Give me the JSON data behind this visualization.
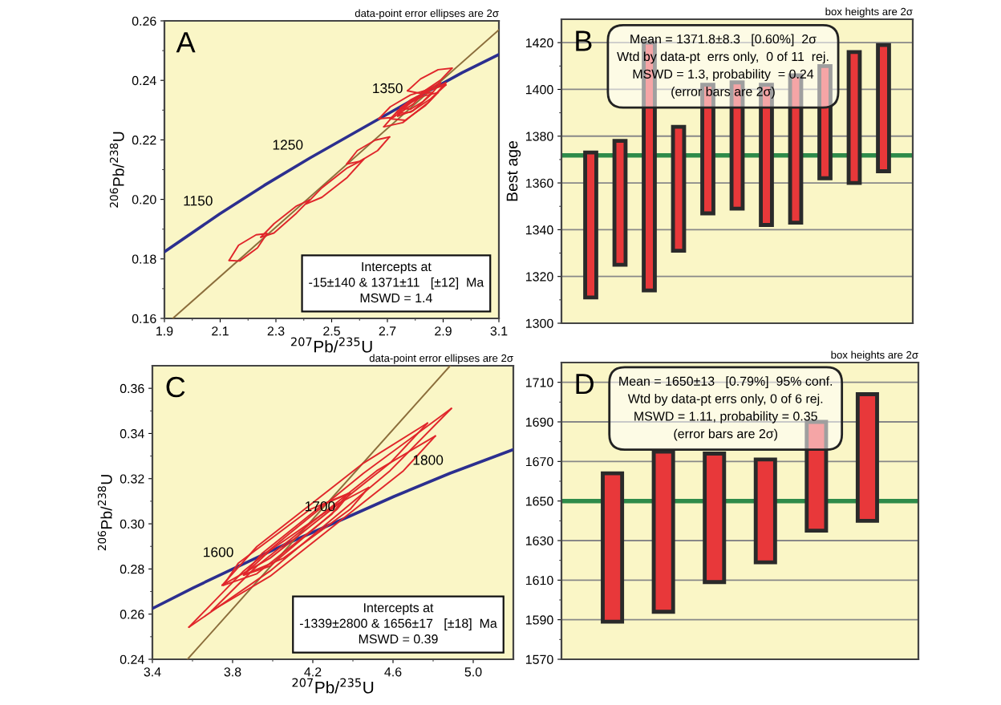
{
  "chart_data": [
    {
      "type": "line",
      "xlabel": "$^{207}$Pb/$^{235}$U",
      "ylabel": "$^{206}$Pb/$^{238}$U",
      "xlim": [
        1.9,
        3.1
      ],
      "ylim": [
        0.16,
        0.26
      ],
      "xticks": [
        1.9,
        {
          "value": 2.0,
          "label": null
        },
        2.1,
        {
          "value": 2.2,
          "label": null
        },
        2.3,
        {
          "value": 2.4,
          "label": null
        },
        2.5,
        {
          "value": 2.6,
          "label": null
        },
        2.7,
        {
          "value": 2.8,
          "label": null
        },
        2.9,
        {
          "value": 3.0,
          "label": null
        },
        3.1
      ],
      "yticks": [
        0.16,
        {
          "value": 0.17,
          "label": null
        },
        0.18,
        {
          "value": 0.19,
          "label": null
        },
        {
          "value": 0.2,
          "label": "0.20"
        },
        {
          "value": 0.21,
          "label": null
        },
        0.22,
        {
          "value": 0.23,
          "label": null
        },
        0.24,
        {
          "value": 0.25,
          "label": null
        },
        0.26
      ],
      "series": [
        {
          "color": "#2c2f8f",
          "x": [
            1.9,
            2.098,
            2.258,
            2.422,
            2.597,
            2.78,
            2.968,
            3.1
          ],
          "values": [
            0.1824,
            0.1951,
            0.2047,
            0.2139,
            0.2232,
            0.2329,
            0.2426,
            0.2487
          ]
        },
        {
          "color": "#8c6e3c",
          "x": [
            1.93,
            3.1
          ],
          "values": [
            0.16,
            0.257
          ]
        },
        {
          "color": "#e0262b",
          "x": [
            2.132,
            2.166,
            2.229,
            2.268
          ],
          "values": [
            0.1795,
            0.1846,
            0.1881,
            0.1885
          ]
        },
        {
          "color": "#e0262b",
          "x": [
            2.132,
            2.17,
            2.234,
            2.268
          ],
          "values": [
            0.1795,
            0.1793,
            0.1837,
            0.1885
          ]
        },
        {
          "color": "#e0262b",
          "x": [
            2.246,
            2.293,
            2.374,
            2.42
          ],
          "values": [
            0.1873,
            0.1918,
            0.1978,
            0.1998
          ]
        },
        {
          "color": "#e0262b",
          "x": [
            2.246,
            2.293,
            2.374,
            2.42
          ],
          "values": [
            0.1873,
            0.1887,
            0.1954,
            0.1998
          ]
        },
        {
          "color": "#e0262b",
          "x": [
            2.409,
            2.465,
            2.556,
            2.615
          ],
          "values": [
            0.1985,
            0.2039,
            0.2106,
            0.2135
          ]
        },
        {
          "color": "#e0262b",
          "x": [
            2.409,
            2.465,
            2.556,
            2.615
          ],
          "values": [
            0.1985,
            0.2007,
            0.2074,
            0.2135
          ]
        },
        {
          "color": "#e0262b",
          "x": [
            2.554,
            2.592,
            2.656,
            2.708
          ],
          "values": [
            0.2119,
            0.2164,
            0.2199,
            0.221
          ]
        },
        {
          "color": "#e0262b",
          "x": [
            2.554,
            2.601,
            2.665,
            2.708
          ],
          "values": [
            0.2119,
            0.2128,
            0.2164,
            0.221
          ]
        },
        {
          "color": "#e0262b",
          "x": [
            2.772,
            2.819,
            2.882,
            2.932
          ],
          "values": [
            0.2365,
            0.2405,
            0.2436,
            0.2441
          ]
        },
        {
          "color": "#e0262b",
          "x": [
            2.772,
            2.819,
            2.891,
            2.932
          ],
          "values": [
            0.2365,
            0.2356,
            0.2401,
            0.2441
          ]
        },
        {
          "color": "#e0262b",
          "x": [
            2.687,
            2.737,
            2.828,
            2.91
          ],
          "values": [
            0.2244,
            0.2298,
            0.2356,
            0.2392
          ]
        },
        {
          "color": "#e0262b",
          "x": [
            2.687,
            2.755,
            2.846,
            2.91
          ],
          "values": [
            0.2244,
            0.2258,
            0.2325,
            0.2392
          ]
        },
        {
          "color": "#e0262b",
          "x": [
            2.669,
            2.71,
            2.783,
            2.842
          ],
          "values": [
            0.2271,
            0.2311,
            0.2351,
            0.2368
          ]
        },
        {
          "color": "#e0262b",
          "x": [
            2.669,
            2.719,
            2.792,
            2.842
          ],
          "values": [
            0.2271,
            0.2275,
            0.232,
            0.2368
          ]
        },
        {
          "color": "#e0262b",
          "x": [
            2.71,
            2.755,
            2.828,
            2.882
          ],
          "values": [
            0.2271,
            0.2311,
            0.2347,
            0.2359
          ]
        },
        {
          "color": "#e0262b",
          "x": [
            2.71,
            2.764,
            2.837,
            2.882
          ],
          "values": [
            0.2271,
            0.2266,
            0.2316,
            0.2359
          ]
        },
        {
          "color": "#e0262b",
          "x": [
            2.737,
            2.783,
            2.855,
            2.91
          ],
          "values": [
            0.2289,
            0.2329,
            0.2369,
            0.2385
          ]
        },
        {
          "color": "#e0262b",
          "x": [
            2.737,
            2.783,
            2.855,
            2.91
          ],
          "values": [
            0.2289,
            0.2293,
            0.2338,
            0.2385
          ]
        },
        {
          "color": "#e0262b",
          "x": [
            2.746,
            2.783,
            2.828,
            2.86
          ],
          "values": [
            0.2307,
            0.2334,
            0.2356,
            0.2359
          ]
        },
        {
          "color": "#e0262b",
          "x": [
            2.746,
            2.783,
            2.828,
            2.86
          ],
          "values": [
            0.2307,
            0.2303,
            0.2329,
            0.2359
          ]
        },
        {
          "color": "#e0262b",
          "x": [
            2.737,
            2.773,
            2.837,
            2.891
          ],
          "values": [
            0.228,
            0.2316,
            0.2365,
            0.2392
          ]
        },
        {
          "color": "#e0262b",
          "x": [
            2.737,
            2.792,
            2.855,
            2.891
          ],
          "values": [
            0.228,
            0.2298,
            0.2351,
            0.2392
          ]
        }
      ],
      "annotations": [
        "A",
        "data-point error ellipses are 2σ",
        "Intercepts at\n-15±140 & 1371±11   [±12]  Ma\nMSWD = 1.4",
        {
          "text": "1150",
          "x": 2.098,
          "y": 0.1951
        },
        {
          "text": "1250",
          "x": 2.422,
          "y": 0.2139
        },
        {
          "text": "1350",
          "x": 2.78,
          "y": 0.2329
        }
      ]
    },
    {
      "type": "bar",
      "ylabel": "Best age",
      "categories": [
        null,
        null,
        null,
        null,
        null,
        null,
        null,
        null,
        null,
        null,
        null
      ],
      "base": [
        1311,
        1325,
        1314,
        1331,
        1347,
        1349,
        1342,
        1343,
        1362,
        1360,
        1365
      ],
      "values": [
        62,
        53,
        106,
        53,
        55,
        54,
        60,
        63,
        48,
        56,
        54
      ],
      "color": "#e8383a",
      "ylim": [
        1300,
        1430
      ],
      "yticks": [
        1300,
        {
          "value": 1310,
          "label": null
        },
        1320,
        {
          "value": 1330,
          "label": null
        },
        1340,
        {
          "value": 1350,
          "label": null
        },
        1360,
        {
          "value": 1370,
          "label": null
        },
        1380,
        {
          "value": 1390,
          "label": null
        },
        1400,
        {
          "value": 1410,
          "label": null
        },
        1420
      ],
      "grid": "y",
      "ref_lines": [
        {
          "axis": "y",
          "value": 1371.8,
          "color": "#2e8b4a"
        }
      ],
      "annotations": [
        "B",
        "box heights are 2σ",
        "Mean = 1371.8±8.3   [0.60%]  2σ\nWtd by data-pt  errs only,  0 of 11  rej.\nMSWD = 1.3, probability  = 0.24\n(error bars are 2σ)"
      ]
    },
    {
      "type": "line",
      "xlabel": "$^{207}$Pb/$^{235}$U",
      "ylabel": "$^{206}$Pb/$^{238}$U",
      "xlim": [
        3.4,
        5.2
      ],
      "ylim": [
        0.24,
        0.37
      ],
      "xticks": [
        3.4,
        {
          "value": 3.6,
          "label": null
        },
        3.8,
        {
          "value": 4.0,
          "label": null
        },
        4.2,
        {
          "value": 4.4,
          "label": null
        },
        4.6,
        {
          "value": 4.8,
          "label": null
        },
        {
          "value": 5.0,
          "label": "5.0"
        }
      ],
      "yticks": [
        0.24,
        {
          "value": 0.25,
          "label": null
        },
        0.26,
        {
          "value": 0.27,
          "label": null
        },
        0.28,
        {
          "value": 0.29,
          "label": null
        },
        {
          "value": 0.3,
          "label": "0.30"
        },
        {
          "value": 0.31,
          "label": null
        },
        0.32,
        {
          "value": 0.33,
          "label": null
        },
        0.34,
        {
          "value": 0.35,
          "label": null
        },
        0.36
      ],
      "series": [
        {
          "color": "#2c2f8f",
          "x": [
            3.4,
            3.602,
            3.839,
            4.08,
            4.346,
            4.605,
            4.885,
            5.2
          ],
          "values": [
            0.2625,
            0.2716,
            0.2816,
            0.2916,
            0.3019,
            0.3121,
            0.3224,
            0.3329
          ]
        },
        {
          "color": "#8c6e3c",
          "x": [
            3.575,
            4.885
          ],
          "values": [
            0.24,
            0.37
          ]
        },
        {
          "color": "#e0262b",
          "x": [
            3.582,
            3.855,
            4.453,
            4.891
          ],
          "values": [
            0.2542,
            0.2791,
            0.3224,
            0.3511
          ]
        },
        {
          "color": "#e0262b",
          "x": [
            3.582,
            3.987,
            4.585,
            4.891
          ],
          "values": [
            0.2542,
            0.2791,
            0.3235,
            0.3511
          ]
        },
        {
          "color": "#e0262b",
          "x": [
            3.748,
            3.921,
            4.453,
            4.772
          ],
          "values": [
            0.2728,
            0.2899,
            0.3269,
            0.3446
          ]
        },
        {
          "color": "#e0262b",
          "x": [
            3.748,
            3.987,
            4.585,
            4.772
          ],
          "values": [
            0.2728,
            0.2848,
            0.3269,
            0.3446
          ]
        },
        {
          "color": "#e0262b",
          "x": [
            3.695,
            3.921,
            4.519,
            4.811
          ],
          "values": [
            0.2614,
            0.2813,
            0.3235,
            0.3389
          ]
        },
        {
          "color": "#e0262b",
          "x": [
            3.695,
            3.987,
            4.652,
            4.811
          ],
          "values": [
            0.2614,
            0.2768,
            0.3235,
            0.3389
          ]
        },
        {
          "color": "#e0262b",
          "x": [
            3.855,
            3.987,
            4.32,
            4.479
          ],
          "values": [
            0.2773,
            0.2882,
            0.3087,
            0.3161
          ]
        },
        {
          "color": "#e0262b",
          "x": [
            3.855,
            4.054,
            4.386,
            4.479
          ],
          "values": [
            0.2773,
            0.2848,
            0.3064,
            0.3161
          ]
        },
        {
          "color": "#e0262b",
          "x": [
            3.855,
            3.948,
            4.253,
            4.386
          ],
          "values": [
            0.2773,
            0.287,
            0.3087,
            0.3135
          ]
        },
        {
          "color": "#e0262b",
          "x": [
            3.855,
            3.987,
            4.32,
            4.386
          ],
          "values": [
            0.2773,
            0.2813,
            0.3064,
            0.3135
          ]
        },
        {
          "color": "#e0262b",
          "x": [
            3.755,
            3.828,
            4.187,
            4.373
          ],
          "values": [
            0.2728,
            0.2825,
            0.3064,
            0.3133
          ]
        },
        {
          "color": "#e0262b",
          "x": [
            3.755,
            3.921,
            4.293,
            4.373
          ],
          "values": [
            0.2728,
            0.2779,
            0.3041,
            0.3133
          ]
        }
      ],
      "annotations": [
        "C",
        "data-point error ellipses are 2σ",
        "Intercepts at\n-1339±2800 & 1656±17   [±18]  Ma\nMSWD = 0.39",
        {
          "text": "1600",
          "x": 3.839,
          "y": 0.2816
        },
        {
          "text": "1700",
          "x": 4.346,
          "y": 0.3019
        },
        {
          "text": "1800",
          "x": 4.885,
          "y": 0.3224
        }
      ]
    },
    {
      "type": "bar",
      "categories": [
        null,
        null,
        null,
        null,
        null,
        null
      ],
      "base": [
        1589,
        1594,
        1609,
        1619,
        1635,
        1640
      ],
      "values": [
        75,
        81,
        65,
        52,
        55,
        64
      ],
      "color": "#e8383a",
      "ylim": [
        1570,
        1720
      ],
      "yticks": [
        1570,
        {
          "value": 1580,
          "label": null
        },
        1590,
        {
          "value": 1600,
          "label": null
        },
        1610,
        {
          "value": 1620,
          "label": null
        },
        1630,
        {
          "value": 1640,
          "label": null
        },
        1650,
        {
          "value": 1660,
          "label": null
        },
        1670,
        {
          "value": 1680,
          "label": null
        },
        1690,
        {
          "value": 1700,
          "label": null
        },
        1710
      ],
      "grid": "y",
      "ref_lines": [
        {
          "axis": "y",
          "value": 1650,
          "color": "#2e8b4a"
        }
      ],
      "annotations": [
        "D",
        "box heights are 2σ",
        "Mean = 1650±13   [0.79%]  95% conf.\nWtd by data-pt errs only, 0 of 6 rej.\nMSWD = 1.11, probability = 0.35\n(error bars are 2σ)"
      ]
    }
  ]
}
